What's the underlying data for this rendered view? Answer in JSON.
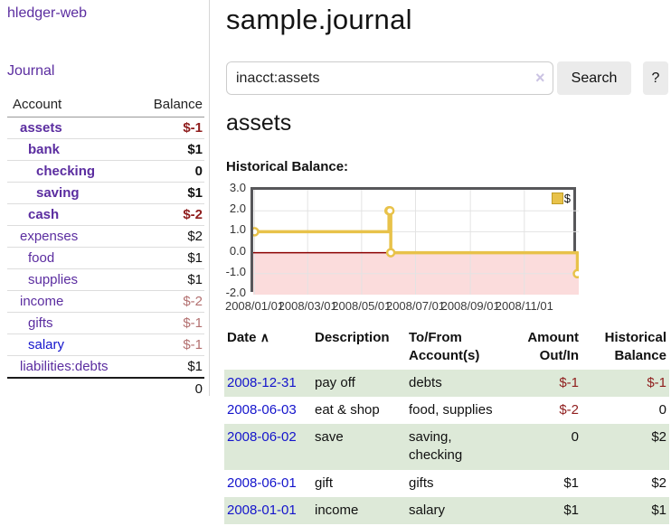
{
  "sidebar": {
    "brand": "hledger-web",
    "journal_link": "Journal",
    "accounts_table": {
      "header_account": "Account",
      "header_balance": "Balance",
      "rows": [
        {
          "name": "assets",
          "balance": "$-1"
        },
        {
          "name": "bank",
          "balance": "$1"
        },
        {
          "name": "checking",
          "balance": "0"
        },
        {
          "name": "saving",
          "balance": "$1"
        },
        {
          "name": "cash",
          "balance": "$-2"
        },
        {
          "name": "expenses",
          "balance": "$2"
        },
        {
          "name": "food",
          "balance": "$1"
        },
        {
          "name": "supplies",
          "balance": "$1"
        },
        {
          "name": "income",
          "balance": "$-2"
        },
        {
          "name": "gifts",
          "balance": "$-1"
        },
        {
          "name": "salary",
          "balance": "$-1"
        },
        {
          "name": "liabilities:debts",
          "balance": "$1"
        }
      ],
      "total": "0"
    }
  },
  "header": {
    "title": "sample.journal",
    "search": {
      "value": "inacct:assets",
      "clear_icon": "×",
      "search_button": "Search",
      "help_button": "?"
    }
  },
  "register": {
    "heading": "assets",
    "chart_label": "Historical Balance:",
    "table": {
      "headers": {
        "date": "Date",
        "sort_icon": "∧",
        "description": "Description",
        "tofrom": "To/From Account(s)",
        "amount": "Amount Out/In",
        "balance": "Historical Balance"
      },
      "rows": [
        {
          "date": "2008-12-31",
          "description": "pay off",
          "accounts": "debts",
          "amount": "$-1",
          "balance": "$-1"
        },
        {
          "date": "2008-06-03",
          "description": "eat & shop",
          "accounts": "food, supplies",
          "amount": "$-2",
          "balance": "0"
        },
        {
          "date": "2008-06-02",
          "description": "save",
          "accounts": "saving, checking",
          "amount": "0",
          "balance": "$2"
        },
        {
          "date": "2008-06-01",
          "description": "gift",
          "accounts": "gifts",
          "amount": "$1",
          "balance": "$2"
        },
        {
          "date": "2008-01-01",
          "description": "income",
          "accounts": "salary",
          "amount": "$1",
          "balance": "$1"
        }
      ]
    }
  },
  "chart_data": {
    "type": "line",
    "steps": true,
    "title": "Historical Balance",
    "series": [
      {
        "name": "$",
        "x": [
          "2008-01-01",
          "2008-06-01",
          "2008-06-02",
          "2008-06-03",
          "2008-12-31"
        ],
        "values": [
          1,
          2,
          2,
          0,
          -1
        ]
      }
    ],
    "xlim": [
      "2008-01-01",
      "2008-12-31"
    ],
    "ylim": [
      -2,
      3
    ],
    "yticks": [
      3.0,
      2.0,
      1.0,
      0.0,
      -1.0,
      -2.0
    ],
    "ytick_labels": [
      "3.0",
      "2.0",
      "1.0",
      "0.0",
      "-1.0",
      "-2.0"
    ],
    "xticks": [
      "2008-01-01",
      "2008-03-01",
      "2008-05-01",
      "2008-07-01",
      "2008-09-01",
      "2008-11-01"
    ],
    "xtick_labels": [
      "2008/01/01",
      "2008/03/01",
      "2008/05/01",
      "2008/07/01",
      "2008/09/01",
      "2008/11/01"
    ],
    "legend": {
      "label": "$",
      "position": "top-right"
    },
    "grid": true,
    "colors": {
      "line": "#e8c24a",
      "marker_fill": "#ffffff",
      "negative_region": "#fbdcdc",
      "zero_line": "#8b0000",
      "grid_line": "#e3e3e3"
    }
  }
}
